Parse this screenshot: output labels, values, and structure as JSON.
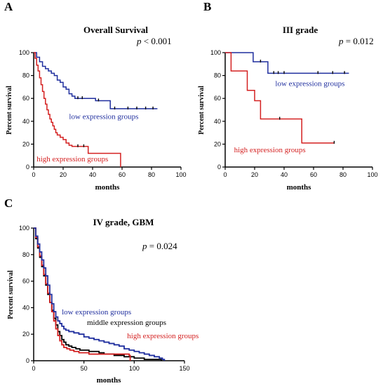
{
  "colors": {
    "low": "#1f2e9e",
    "high": "#d42020",
    "middle": "#000000",
    "axis": "#000000"
  },
  "chart_data": [
    {
      "id": "A",
      "type": "line",
      "step": true,
      "panel_label": "A",
      "title": "Overall Survival",
      "p_symbol": "p",
      "p_text": " < 0.001",
      "xlabel": "months",
      "ylabel": "Percent survival",
      "xlim": [
        0,
        100
      ],
      "ylim": [
        0,
        100
      ],
      "xticks": [
        "0",
        "20",
        "40",
        "60",
        "80",
        "100"
      ],
      "yticks": [
        "0",
        "20",
        "40",
        "60",
        "80",
        "100"
      ],
      "annotations": [
        {
          "text": "low expression groups",
          "series": "low",
          "x": 24,
          "y": 42
        },
        {
          "text": "high expression groups",
          "series": "high",
          "x": 2,
          "y": 5
        }
      ],
      "series": [
        {
          "key": "low",
          "points": [
            [
              0,
              100
            ],
            [
              2,
              96
            ],
            [
              4,
              92
            ],
            [
              6,
              88
            ],
            [
              8,
              86
            ],
            [
              10,
              84
            ],
            [
              12,
              82
            ],
            [
              14,
              80
            ],
            [
              16,
              76
            ],
            [
              18,
              74
            ],
            [
              20,
              70
            ],
            [
              22,
              68
            ],
            [
              24,
              64
            ],
            [
              26,
              62
            ],
            [
              28,
              60
            ],
            [
              36,
              60
            ],
            [
              42,
              58
            ],
            [
              50,
              58
            ],
            [
              52,
              51
            ],
            [
              60,
              51
            ],
            [
              70,
              51
            ],
            [
              84,
              51
            ]
          ],
          "censor": [
            [
              30,
              60
            ],
            [
              33,
              60
            ],
            [
              44,
              58
            ],
            [
              55,
              51
            ],
            [
              64,
              51
            ],
            [
              70,
              51
            ],
            [
              76,
              51
            ],
            [
              81,
              51
            ]
          ]
        },
        {
          "key": "high",
          "points": [
            [
              0,
              100
            ],
            [
              1,
              95
            ],
            [
              2,
              89
            ],
            [
              3,
              84
            ],
            [
              4,
              78
            ],
            [
              5,
              72
            ],
            [
              6,
              66
            ],
            [
              7,
              60
            ],
            [
              8,
              55
            ],
            [
              9,
              50
            ],
            [
              10,
              46
            ],
            [
              11,
              42
            ],
            [
              12,
              39
            ],
            [
              13,
              36
            ],
            [
              14,
              33
            ],
            [
              15,
              30
            ],
            [
              16,
              28
            ],
            [
              18,
              26
            ],
            [
              20,
              24
            ],
            [
              22,
              21
            ],
            [
              24,
              19
            ],
            [
              26,
              18
            ],
            [
              28,
              18
            ],
            [
              30,
              18
            ],
            [
              36,
              18
            ],
            [
              37,
              12
            ],
            [
              58,
              12
            ],
            [
              59,
              0
            ]
          ],
          "censor": [
            [
              30,
              18
            ],
            [
              34,
              18
            ]
          ]
        }
      ]
    },
    {
      "id": "B",
      "type": "line",
      "step": true,
      "panel_label": "B",
      "title": "III grade",
      "p_symbol": "p",
      "p_text": " = 0.012",
      "xlabel": "months",
      "ylabel": "Percent survival",
      "xlim": [
        0,
        100
      ],
      "ylim": [
        0,
        100
      ],
      "xticks": [
        "0",
        "20",
        "40",
        "60",
        "80",
        "100"
      ],
      "yticks": [
        "0",
        "20",
        "40",
        "60",
        "80",
        "100"
      ],
      "annotations": [
        {
          "text": "low expression groups",
          "series": "low",
          "x": 34,
          "y": 71
        },
        {
          "text": "high expression groups",
          "series": "high",
          "x": 6,
          "y": 13
        }
      ],
      "series": [
        {
          "key": "low",
          "points": [
            [
              0,
              100
            ],
            [
              18,
              100
            ],
            [
              19,
              92
            ],
            [
              28,
              92
            ],
            [
              29,
              82
            ],
            [
              50,
              82
            ],
            [
              84,
              82
            ]
          ],
          "censor": [
            [
              24,
              92
            ],
            [
              33,
              82
            ],
            [
              36,
              82
            ],
            [
              40,
              82
            ],
            [
              63,
              82
            ],
            [
              73,
              82
            ],
            [
              81,
              82
            ]
          ]
        },
        {
          "key": "high",
          "points": [
            [
              0,
              100
            ],
            [
              3,
              100
            ],
            [
              4,
              84
            ],
            [
              14,
              84
            ],
            [
              15,
              67
            ],
            [
              19,
              67
            ],
            [
              20,
              58
            ],
            [
              23,
              58
            ],
            [
              24,
              42
            ],
            [
              51,
              42
            ],
            [
              52,
              21
            ],
            [
              74,
              21
            ]
          ],
          "censor": [
            [
              37,
              42
            ],
            [
              74,
              21
            ]
          ]
        }
      ]
    },
    {
      "id": "C",
      "type": "line",
      "step": true,
      "panel_label": "C",
      "title": "IV grade, GBM",
      "p_symbol": "p",
      "p_text": " = 0.024",
      "xlabel": "months",
      "ylabel": "Percent survival",
      "xlim": [
        0,
        150
      ],
      "ylim": [
        0,
        100
      ],
      "xticks": [
        "0",
        "50",
        "100",
        "150"
      ],
      "yticks": [
        "0",
        "20",
        "40",
        "60",
        "80",
        "100"
      ],
      "annotations": [
        {
          "text": "low expression groups",
          "series": "low",
          "x": 28,
          "y": 35
        },
        {
          "text": "middle expression groups",
          "series": "middle",
          "x": 53,
          "y": 27
        },
        {
          "text": "high expression groups",
          "series": "high",
          "x": 93,
          "y": 17
        }
      ],
      "series": [
        {
          "key": "middle",
          "points": [
            [
              0,
              100
            ],
            [
              2,
              92
            ],
            [
              4,
              85
            ],
            [
              6,
              78
            ],
            [
              8,
              71
            ],
            [
              10,
              64
            ],
            [
              12,
              57
            ],
            [
              14,
              50
            ],
            [
              16,
              44
            ],
            [
              18,
              38
            ],
            [
              20,
              32
            ],
            [
              22,
              27
            ],
            [
              24,
              22
            ],
            [
              26,
              19
            ],
            [
              28,
              16
            ],
            [
              30,
              14
            ],
            [
              32,
              12
            ],
            [
              35,
              11
            ],
            [
              38,
              10
            ],
            [
              42,
              9
            ],
            [
              46,
              8
            ],
            [
              50,
              8
            ],
            [
              55,
              7
            ],
            [
              60,
              7
            ],
            [
              65,
              6
            ],
            [
              70,
              5
            ],
            [
              80,
              4
            ],
            [
              90,
              3
            ],
            [
              100,
              2
            ],
            [
              110,
              1
            ],
            [
              120,
              1
            ],
            [
              127,
              0
            ]
          ],
          "censor": []
        },
        {
          "key": "high",
          "points": [
            [
              0,
              100
            ],
            [
              2,
              93
            ],
            [
              4,
              86
            ],
            [
              6,
              79
            ],
            [
              8,
              72
            ],
            [
              10,
              65
            ],
            [
              12,
              58
            ],
            [
              14,
              51
            ],
            [
              16,
              44
            ],
            [
              18,
              37
            ],
            [
              20,
              30
            ],
            [
              22,
              24
            ],
            [
              24,
              19
            ],
            [
              26,
              15
            ],
            [
              28,
              12
            ],
            [
              30,
              10
            ],
            [
              33,
              9
            ],
            [
              36,
              8
            ],
            [
              40,
              7
            ],
            [
              45,
              6
            ],
            [
              50,
              6
            ],
            [
              55,
              5
            ],
            [
              60,
              5
            ],
            [
              70,
              5
            ],
            [
              80,
              5
            ],
            [
              90,
              5
            ],
            [
              95,
              4
            ],
            [
              96,
              0
            ]
          ],
          "censor": []
        },
        {
          "key": "low",
          "points": [
            [
              0,
              100
            ],
            [
              2,
              94
            ],
            [
              4,
              88
            ],
            [
              6,
              82
            ],
            [
              8,
              76
            ],
            [
              10,
              70
            ],
            [
              12,
              64
            ],
            [
              14,
              57
            ],
            [
              16,
              50
            ],
            [
              18,
              43
            ],
            [
              20,
              37
            ],
            [
              22,
              33
            ],
            [
              24,
              30
            ],
            [
              26,
              28
            ],
            [
              28,
              26
            ],
            [
              30,
              24
            ],
            [
              32,
              23
            ],
            [
              35,
              22
            ],
            [
              40,
              21
            ],
            [
              45,
              20
            ],
            [
              50,
              18
            ],
            [
              55,
              17
            ],
            [
              60,
              16
            ],
            [
              65,
              15
            ],
            [
              70,
              14
            ],
            [
              75,
              13
            ],
            [
              80,
              12
            ],
            [
              85,
              11
            ],
            [
              90,
              9
            ],
            [
              95,
              8
            ],
            [
              100,
              7
            ],
            [
              105,
              6
            ],
            [
              110,
              5
            ],
            [
              115,
              4
            ],
            [
              120,
              3
            ],
            [
              125,
              2
            ],
            [
              128,
              1
            ],
            [
              130,
              0
            ]
          ],
          "censor": []
        }
      ]
    }
  ]
}
